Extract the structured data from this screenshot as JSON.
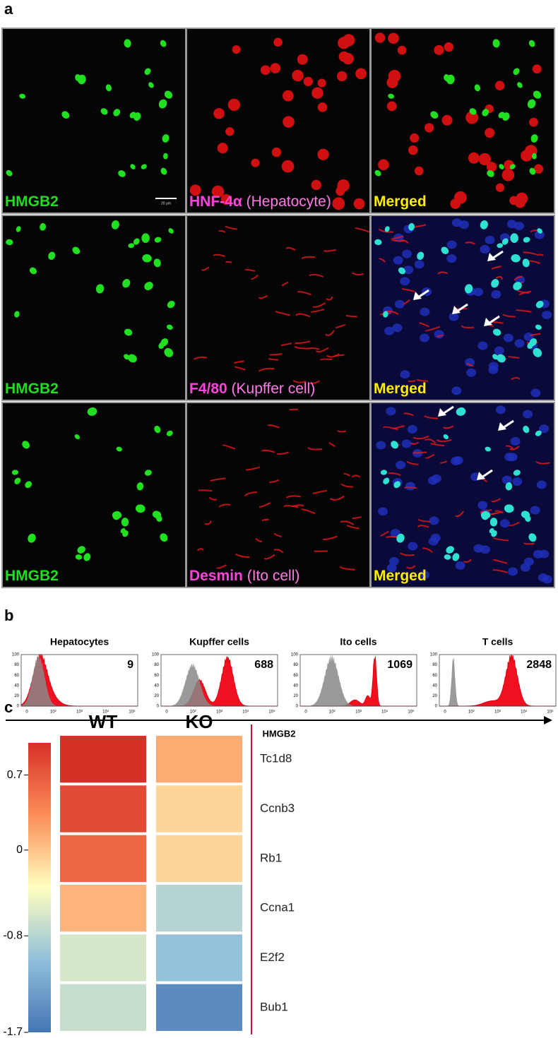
{
  "figure": {
    "panel_a": {
      "label": "a",
      "scale_bar": "20 μm",
      "rows": [
        {
          "cells": [
            {
              "marker": "HMGB2"
            },
            {
              "marker": "HNF-4α",
              "cell_type": "(Hepatocyte)"
            },
            {
              "marker": "Merged"
            }
          ]
        },
        {
          "cells": [
            {
              "marker": "HMGB2"
            },
            {
              "marker": "F4/80",
              "cell_type": "(Kupffer cell)"
            },
            {
              "marker": "Merged"
            }
          ]
        },
        {
          "cells": [
            {
              "marker": "HMGB2"
            },
            {
              "marker": "Desmin",
              "cell_type": "(Ito cell)"
            },
            {
              "marker": "Merged"
            }
          ]
        }
      ]
    },
    "panel_b": {
      "label": "b",
      "xlabel": "HMGB2",
      "yticks": [
        100,
        80,
        60,
        40,
        20,
        0
      ],
      "xticks": [
        "0",
        "10²",
        "10³",
        "10⁴",
        "10⁵"
      ],
      "plots": [
        {
          "title": "Hepatocytes",
          "value": 9
        },
        {
          "title": "Kupffer cells",
          "value": 688
        },
        {
          "title": "Ito cells",
          "value": 1069
        },
        {
          "title": "T cells",
          "value": 2848
        }
      ]
    },
    "panel_c": {
      "label": "c",
      "columns": [
        "WT",
        "KO"
      ],
      "rows": [
        "Tc1d8",
        "Ccnb3",
        "Rb1",
        "Ccna1",
        "E2f2",
        "Bub1"
      ],
      "values": [
        [
          1.0,
          0.15
        ],
        [
          0.8,
          -0.1
        ],
        [
          0.6,
          -0.1
        ],
        [
          0.1,
          -0.8
        ],
        [
          -0.6,
          -1.0
        ],
        [
          -0.7,
          -1.5
        ]
      ],
      "colorbar": {
        "lim": [
          -1.7,
          1.0
        ],
        "ticks": [
          0.7,
          0,
          -0.8,
          -1.7
        ],
        "colors": [
          "#4575b4",
          "#91bfdb",
          "#ffffbf",
          "#fc8d59",
          "#d73027"
        ]
      }
    }
  }
}
